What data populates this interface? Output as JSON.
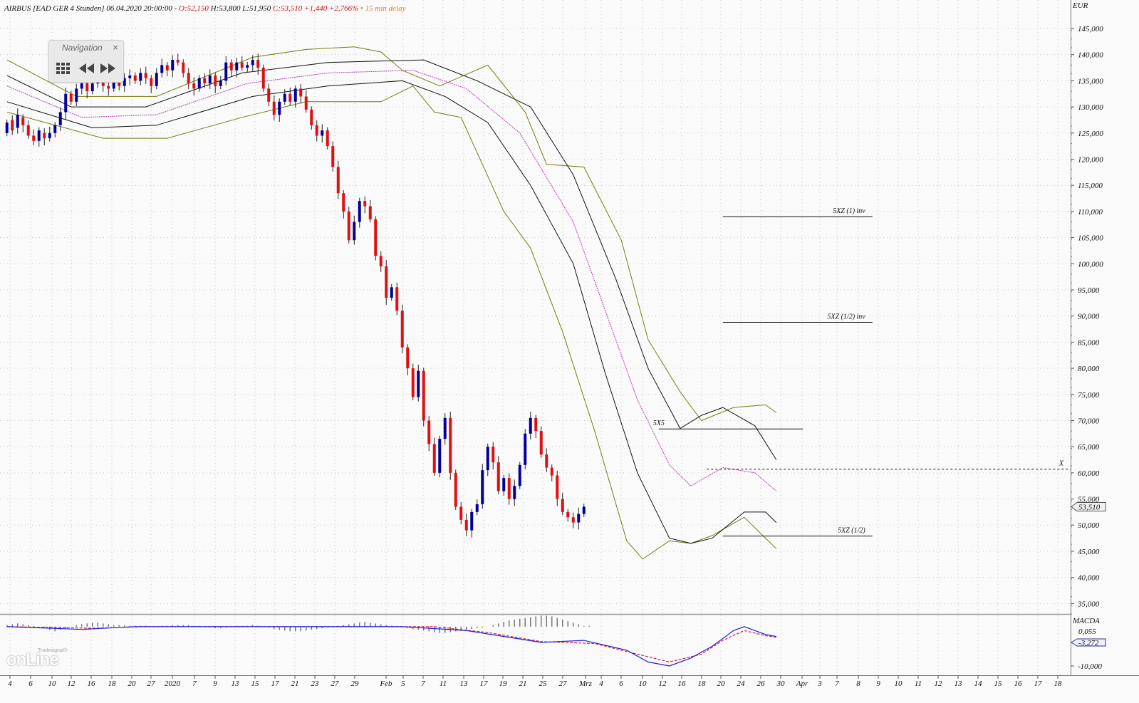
{
  "header": {
    "name": "AIRBUS [EAD GER 4 Stunden]",
    "datetime": "06.04.2020 20:00:00",
    "open": "O:52,150",
    "high": "H:53,800",
    "low": "L:51,950",
    "close": "C:53,510",
    "change": "+1,440",
    "change_pct": "+2,766%",
    "delay": "15 min delay"
  },
  "navigation": {
    "title": "Navigation",
    "close": "×"
  },
  "logo": {
    "small": "Tradesignal®",
    "big": "onLine"
  },
  "colors": {
    "up": "#000099",
    "down": "#dd1111",
    "bollinger": "#7a7a10",
    "ma": "#111111",
    "mid": "#b040b0",
    "macd": "#1d1ddd",
    "signal": "#cc2244"
  },
  "chart_data": {
    "type": "candlestick",
    "currency": "EUR",
    "ylim": [
      33000,
      148000
    ],
    "y_ticks": [
      35000,
      40000,
      45000,
      50000,
      55000,
      60000,
      65000,
      70000,
      75000,
      80000,
      85000,
      90000,
      95000,
      100000,
      105000,
      110000,
      115000,
      120000,
      125000,
      130000,
      135000,
      140000,
      145000
    ],
    "y_tick_labels": [
      "35,000",
      "40,000",
      "45,000",
      "50,000",
      "55,000",
      "60,000",
      "65,000",
      "70,000",
      "75,000",
      "80,000",
      "85,000",
      "90,000",
      "95,000",
      "100,000",
      "105,000",
      "110,000",
      "115,000",
      "120,000",
      "125,000",
      "130,000",
      "135,000",
      "140,000",
      "145,000"
    ],
    "x_labels": [
      "4",
      "6",
      "10",
      "12",
      "16",
      "18",
      "20",
      "27",
      "2020",
      "7",
      "9",
      "13",
      "15",
      "17",
      "21",
      "23",
      "27",
      "29",
      "Feb",
      "5",
      "7",
      "11",
      "13",
      "17",
      "19",
      "21",
      "25",
      "27",
      "Mrz",
      "4",
      "6",
      "10",
      "12",
      "16",
      "18",
      "20",
      "24",
      "26",
      "30",
      "Apr",
      "3",
      "7",
      "8",
      "9",
      "10",
      "11",
      "12",
      "13",
      "14",
      "15",
      "16",
      "17",
      "18"
    ],
    "x_start": "2019-12-04",
    "x_last_bar": "2020-04-06",
    "last_price": 53510,
    "last_price_label": "53,510",
    "candles": [
      [
        125000,
        127000
      ],
      [
        127500,
        125500
      ],
      [
        126000,
        128500
      ],
      [
        128000,
        126500
      ],
      [
        126500,
        124500
      ],
      [
        124500,
        123500
      ],
      [
        123500,
        125500
      ],
      [
        125000,
        124000
      ],
      [
        124000,
        125000
      ],
      [
        125000,
        126500
      ],
      [
        126500,
        129000
      ],
      [
        129000,
        132500
      ],
      [
        132500,
        131000
      ],
      [
        131000,
        133500
      ],
      [
        133500,
        134500
      ],
      [
        134500,
        133000
      ],
      [
        133000,
        134500
      ],
      [
        134500,
        135500
      ],
      [
        135500,
        134000
      ],
      [
        134000,
        133500
      ],
      [
        133500,
        135000
      ],
      [
        135000,
        134000
      ],
      [
        134000,
        135500
      ],
      [
        135500,
        136000
      ],
      [
        136000,
        135000
      ],
      [
        135000,
        136500
      ],
      [
        136500,
        135500
      ],
      [
        135500,
        134000
      ],
      [
        134000,
        136500
      ],
      [
        136500,
        138000
      ],
      [
        138000,
        137000
      ],
      [
        137000,
        139000
      ],
      [
        139000,
        138500
      ],
      [
        138500,
        136500
      ],
      [
        136500,
        134500
      ],
      [
        134500,
        133500
      ],
      [
        133500,
        135500
      ],
      [
        135500,
        134500
      ],
      [
        134500,
        136000
      ],
      [
        136000,
        134000
      ],
      [
        134000,
        135000
      ],
      [
        135000,
        138500
      ],
      [
        138500,
        137000
      ],
      [
        137000,
        138500
      ],
      [
        138500,
        137500
      ],
      [
        137500,
        138000
      ],
      [
        138000,
        139000
      ],
      [
        139000,
        137500
      ],
      [
        137500,
        133500
      ],
      [
        133500,
        131000
      ],
      [
        131000,
        128500
      ],
      [
        128500,
        131000
      ],
      [
        131000,
        132500
      ],
      [
        132500,
        131000
      ],
      [
        131000,
        133500
      ],
      [
        133500,
        132000
      ],
      [
        132000,
        129500
      ],
      [
        129500,
        126500
      ],
      [
        126500,
        124500
      ],
      [
        124500,
        125500
      ],
      [
        125500,
        122500
      ],
      [
        122500,
        118500
      ],
      [
        118500,
        113500
      ],
      [
        113500,
        110000
      ],
      [
        110000,
        104500
      ],
      [
        104500,
        108000
      ],
      [
        108000,
        112000
      ],
      [
        112000,
        111000
      ],
      [
        111000,
        108500
      ],
      [
        108500,
        101500
      ],
      [
        101500,
        99500
      ],
      [
        99500,
        93500
      ],
      [
        93500,
        95500
      ],
      [
        95500,
        91000
      ],
      [
        91000,
        84000
      ],
      [
        84000,
        80000
      ],
      [
        80000,
        74500
      ],
      [
        74500,
        79500
      ],
      [
        79500,
        70000
      ],
      [
        70000,
        65500
      ],
      [
        65500,
        60000
      ],
      [
        60000,
        66500
      ],
      [
        66500,
        70500
      ],
      [
        70500,
        60000
      ],
      [
        60000,
        53500
      ],
      [
        53500,
        51000
      ],
      [
        51000,
        49000
      ],
      [
        49000,
        52500
      ],
      [
        52500,
        54000
      ],
      [
        54000,
        60500
      ],
      [
        60500,
        65000
      ],
      [
        65000,
        62000
      ],
      [
        62000,
        56500
      ],
      [
        56500,
        59000
      ],
      [
        59000,
        55000
      ],
      [
        55000,
        57500
      ],
      [
        57500,
        61500
      ],
      [
        61500,
        67500
      ],
      [
        67500,
        70500
      ],
      [
        70500,
        68000
      ],
      [
        68000,
        63500
      ],
      [
        63500,
        61000
      ],
      [
        61000,
        59500
      ],
      [
        59500,
        55000
      ],
      [
        55000,
        52500
      ],
      [
        52500,
        51500
      ],
      [
        51500,
        50500
      ],
      [
        50500,
        52150
      ],
      [
        52150,
        53510
      ]
    ],
    "studies": {
      "bollinger_upper": [
        [
          0,
          139000
        ],
        [
          13,
          132000
        ],
        [
          28,
          132000
        ],
        [
          46,
          139500
        ],
        [
          56,
          141000
        ],
        [
          65,
          141500
        ],
        [
          70,
          140500
        ],
        [
          74,
          137000
        ],
        [
          81,
          134000
        ],
        [
          90,
          138000
        ],
        [
          97,
          129000
        ],
        [
          101,
          119000
        ],
        [
          108,
          118500
        ],
        [
          115,
          104500
        ],
        [
          120,
          85500
        ],
        [
          126,
          75500
        ],
        [
          130,
          70000
        ],
        [
          136,
          72500
        ],
        [
          142,
          73000
        ],
        [
          144,
          71500
        ]
      ],
      "bollinger_lower": [
        [
          0,
          129000
        ],
        [
          18,
          124000
        ],
        [
          30,
          124000
        ],
        [
          44,
          128000
        ],
        [
          56,
          131000
        ],
        [
          70,
          131000
        ],
        [
          76,
          134000
        ],
        [
          80,
          129000
        ],
        [
          85,
          128000
        ],
        [
          93,
          110000
        ],
        [
          98,
          103000
        ],
        [
          104,
          87000
        ],
        [
          110,
          68000
        ],
        [
          116,
          47000
        ],
        [
          119,
          43500
        ],
        [
          124,
          47000
        ],
        [
          128,
          46500
        ],
        [
          132,
          48000
        ],
        [
          138,
          51500
        ],
        [
          142,
          47500
        ],
        [
          144,
          45500
        ]
      ],
      "ma_upper": [
        [
          0,
          136000
        ],
        [
          12,
          130000
        ],
        [
          26,
          130000
        ],
        [
          44,
          136500
        ],
        [
          60,
          138500
        ],
        [
          78,
          139000
        ],
        [
          88,
          135000
        ],
        [
          98,
          130000
        ],
        [
          106,
          117000
        ],
        [
          114,
          97000
        ],
        [
          120,
          80000
        ],
        [
          126,
          68500
        ],
        [
          130,
          71000
        ],
        [
          134,
          72500
        ],
        [
          140,
          69000
        ],
        [
          144,
          62500
        ]
      ],
      "ma_lower": [
        [
          0,
          131000
        ],
        [
          16,
          126000
        ],
        [
          28,
          126500
        ],
        [
          46,
          132000
        ],
        [
          60,
          134000
        ],
        [
          74,
          135000
        ],
        [
          82,
          132000
        ],
        [
          90,
          127000
        ],
        [
          98,
          115000
        ],
        [
          106,
          100000
        ],
        [
          112,
          79000
        ],
        [
          118,
          60000
        ],
        [
          124,
          47500
        ],
        [
          128,
          46500
        ],
        [
          132,
          47500
        ],
        [
          138,
          52500
        ],
        [
          142,
          52500
        ],
        [
          144,
          50500
        ]
      ],
      "ma_mid": [
        [
          0,
          134000
        ],
        [
          14,
          128000
        ],
        [
          28,
          128500
        ],
        [
          45,
          134500
        ],
        [
          60,
          136500
        ],
        [
          76,
          137000
        ],
        [
          86,
          133500
        ],
        [
          96,
          125000
        ],
        [
          106,
          108000
        ],
        [
          112,
          91000
        ],
        [
          118,
          74000
        ],
        [
          124,
          61500
        ],
        [
          128,
          57500
        ],
        [
          134,
          61000
        ],
        [
          140,
          60000
        ],
        [
          144,
          56500
        ]
      ]
    },
    "annotations": [
      {
        "label": "5XZ (1) inv",
        "y": 109000,
        "x_from": 134,
        "x_to": 162
      },
      {
        "label": "5XZ (1/2) inv",
        "y": 88800,
        "x_from": 134,
        "x_to": 162
      },
      {
        "label": "5X5",
        "y": 68400,
        "x_from": 122,
        "x_to": 149
      },
      {
        "label": "X",
        "y": 60700,
        "x_from": 131,
        "x_to": 188,
        "dashed": true
      },
      {
        "label": "5XZ (1/2)",
        "y": 47900,
        "x_from": 134,
        "x_to": 162
      }
    ],
    "macd": {
      "label": "MACDA",
      "ylim": [
        -12000,
        2500
      ],
      "y_ticks": [
        -10000
      ],
      "y_tick_labels": [
        "-10,000"
      ],
      "value_labels": [
        "0,055",
        "-3,272"
      ],
      "macd_line": [
        [
          0,
          0
        ],
        [
          14,
          -700
        ],
        [
          24,
          0
        ],
        [
          40,
          0
        ],
        [
          60,
          0
        ],
        [
          74,
          0
        ],
        [
          86,
          -1000
        ],
        [
          100,
          -4000
        ],
        [
          108,
          -3500
        ],
        [
          116,
          -6000
        ],
        [
          120,
          -9000
        ],
        [
          124,
          -10000
        ],
        [
          128,
          -8000
        ],
        [
          132,
          -5000
        ],
        [
          136,
          -1000
        ],
        [
          138,
          0
        ],
        [
          142,
          -2000
        ],
        [
          144,
          -2500
        ]
      ],
      "signal_line": [
        [
          0,
          0
        ],
        [
          16,
          -400
        ],
        [
          26,
          0
        ],
        [
          60,
          0
        ],
        [
          80,
          0
        ],
        [
          90,
          -1500
        ],
        [
          100,
          -3800
        ],
        [
          110,
          -4300
        ],
        [
          118,
          -7000
        ],
        [
          124,
          -9000
        ],
        [
          130,
          -7000
        ],
        [
          134,
          -3500
        ],
        [
          138,
          -1000
        ],
        [
          142,
          -2300
        ],
        [
          144,
          -2700
        ]
      ],
      "histogram": [
        200,
        300,
        400,
        300,
        200,
        100,
        0,
        -200,
        -400,
        -600,
        -400,
        -200,
        0,
        200,
        300,
        400,
        500,
        500,
        400,
        300,
        200,
        200,
        200,
        100,
        100,
        100,
        100,
        0,
        0,
        100,
        100,
        200,
        200,
        200,
        200,
        100,
        100,
        0,
        -100,
        -200,
        -200,
        -100,
        0,
        100,
        100,
        100,
        200,
        100,
        0,
        -100,
        -300,
        -400,
        -500,
        -600,
        -600,
        -600,
        -500,
        -400,
        -300,
        -200,
        -100,
        0,
        100,
        200,
        300,
        400,
        500,
        600,
        500,
        400,
        300,
        200,
        100,
        0,
        -100,
        -200,
        -300,
        -400,
        -500,
        -600,
        -700,
        -800,
        -800,
        -700,
        -600,
        -500,
        -400,
        -300,
        -200,
        -100,
        0,
        200,
        400,
        600,
        800,
        900,
        1000,
        1100,
        1200,
        1300,
        1400,
        1400,
        1300,
        1100,
        900,
        700,
        500,
        300,
        100,
        100
      ]
    }
  }
}
